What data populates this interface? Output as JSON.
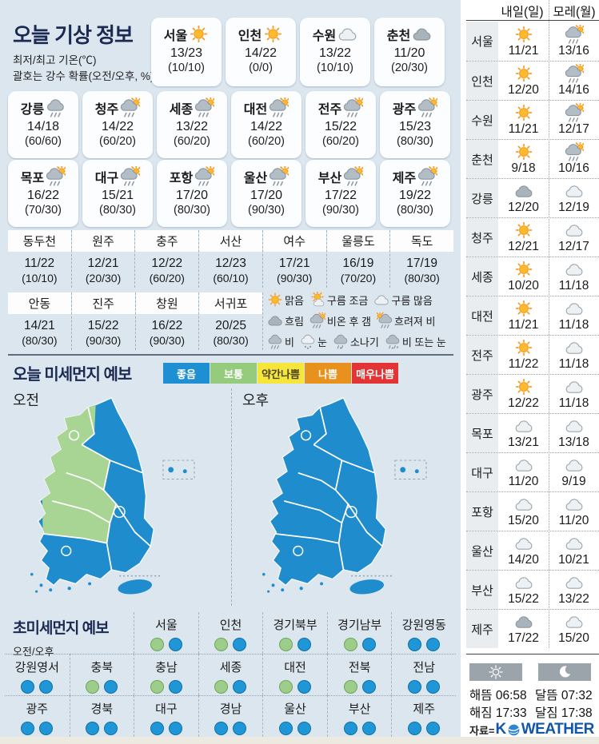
{
  "colors": {
    "bg": "#DCE6EF",
    "navy": "#1A2A52",
    "map_good": "#1F8CCD",
    "map_moderate": "#A9D594",
    "dot_good": "#1F97D6",
    "dot_good_border": "#0F6FA6",
    "dot_moderate": "#9CCD89",
    "dot_moderate_border": "#6FA55E",
    "bar_gray": "#9BA3AB",
    "brand_blue": "#1256A8"
  },
  "left": {
    "title": "오늘 기상 정보",
    "subtitle1": "최저/최고 기온(℃)",
    "subtitle2": "괄호는 강수 확률(오전/오후, %)",
    "card_rows": [
      [
        {
          "name": "서울",
          "icon": "sun",
          "temp": "13/23",
          "prob": "(10/10)"
        },
        {
          "name": "인천",
          "icon": "sun",
          "temp": "14/22",
          "prob": "(0/0)"
        },
        {
          "name": "수원",
          "icon": "cloud-light",
          "temp": "13/22",
          "prob": "(10/10)"
        },
        {
          "name": "춘천",
          "icon": "cloud-dark",
          "temp": "11/20",
          "prob": "(20/30)"
        }
      ],
      [
        {
          "name": "강릉",
          "icon": "rain",
          "temp": "14/18",
          "prob": "(60/60)"
        },
        {
          "name": "청주",
          "icon": "rain-sun",
          "temp": "14/22",
          "prob": "(60/20)"
        },
        {
          "name": "세종",
          "icon": "rain-sun",
          "temp": "13/22",
          "prob": "(60/20)"
        },
        {
          "name": "대전",
          "icon": "rain-sun",
          "temp": "14/22",
          "prob": "(60/20)"
        },
        {
          "name": "전주",
          "icon": "rain-sun",
          "temp": "15/22",
          "prob": "(60/20)"
        },
        {
          "name": "광주",
          "icon": "rain-sun",
          "temp": "15/23",
          "prob": "(80/30)"
        }
      ],
      [
        {
          "name": "목포",
          "icon": "rain-sun",
          "temp": "16/22",
          "prob": "(70/30)"
        },
        {
          "name": "대구",
          "icon": "rain-sun",
          "temp": "15/21",
          "prob": "(80/30)"
        },
        {
          "name": "포항",
          "icon": "rain-sun",
          "temp": "17/20",
          "prob": "(80/30)"
        },
        {
          "name": "울산",
          "icon": "rain-sun",
          "temp": "17/20",
          "prob": "(90/30)"
        },
        {
          "name": "부산",
          "icon": "rain-sun",
          "temp": "17/22",
          "prob": "(90/30)"
        },
        {
          "name": "제주",
          "icon": "rain-sun",
          "temp": "19/22",
          "prob": "(80/30)"
        }
      ]
    ],
    "table_row1": [
      {
        "name": "동두천",
        "temp": "11/22",
        "prob": "(10/10)"
      },
      {
        "name": "원주",
        "temp": "12/21",
        "prob": "(20/30)"
      },
      {
        "name": "충주",
        "temp": "12/22",
        "prob": "(60/20)"
      },
      {
        "name": "서산",
        "temp": "12/23",
        "prob": "(60/10)"
      },
      {
        "name": "여수",
        "temp": "17/21",
        "prob": "(90/30)"
      },
      {
        "name": "울릉도",
        "temp": "16/19",
        "prob": "(70/20)"
      },
      {
        "name": "독도",
        "temp": "17/19",
        "prob": "(80/30)"
      }
    ],
    "table_row2": [
      {
        "name": "안동",
        "temp": "14/21",
        "prob": "(80/30)"
      },
      {
        "name": "진주",
        "temp": "15/22",
        "prob": "(90/30)"
      },
      {
        "name": "창원",
        "temp": "16/22",
        "prob": "(90/30)"
      },
      {
        "name": "서귀포",
        "temp": "20/25",
        "prob": "(80/30)"
      }
    ],
    "weather_legend": [
      [
        {
          "icon": "sun",
          "label": "맑음"
        },
        {
          "icon": "sun-cloud",
          "label": "구름 조금"
        },
        {
          "icon": "cloud-light",
          "label": "구름 많음"
        }
      ],
      [
        {
          "icon": "cloud-dark",
          "label": "흐림"
        },
        {
          "icon": "rain-sun",
          "label": "비온 후 갬"
        },
        {
          "icon": "sun-rain",
          "label": "흐려져 비"
        }
      ],
      [
        {
          "icon": "rain",
          "label": "비"
        },
        {
          "icon": "snow",
          "label": "눈"
        },
        {
          "icon": "shower",
          "label": "소나기"
        },
        {
          "icon": "rain-snow",
          "label": "비 또는 눈"
        }
      ]
    ],
    "dust": {
      "title": "오늘 미세먼지 예보",
      "legend": [
        {
          "label": "좋음",
          "bg": "#1D8FD2",
          "fg": "#FFFFFF"
        },
        {
          "label": "보통",
          "bg": "#95CB7D",
          "fg": "#FFFFFF"
        },
        {
          "label": "약간나쁨",
          "bg": "#F6E63C",
          "fg": "#4A4416"
        },
        {
          "label": "나쁨",
          "bg": "#E8911D",
          "fg": "#FFFFFF"
        },
        {
          "label": "매우나쁨",
          "bg": "#E23434",
          "fg": "#FFFFFF"
        }
      ],
      "am_label": "오전",
      "pm_label": "오후"
    },
    "ultrafine": {
      "title": "초미세먼지 예보",
      "sub": "오전/오후",
      "rows": [
        [
          {
            "name": "서울",
            "am": "moderate",
            "pm": "good"
          },
          {
            "name": "인천",
            "am": "moderate",
            "pm": "good"
          },
          {
            "name": "경기북부",
            "am": "moderate",
            "pm": "good"
          },
          {
            "name": "경기남부",
            "am": "moderate",
            "pm": "good"
          },
          {
            "name": "강원영동",
            "am": "good",
            "pm": "good"
          }
        ],
        [
          {
            "name": "강원영서",
            "am": "good",
            "pm": "good"
          },
          {
            "name": "충북",
            "am": "moderate",
            "pm": "good"
          },
          {
            "name": "충남",
            "am": "moderate",
            "pm": "good"
          },
          {
            "name": "세종",
            "am": "moderate",
            "pm": "good"
          },
          {
            "name": "대전",
            "am": "moderate",
            "pm": "good"
          },
          {
            "name": "전북",
            "am": "moderate",
            "pm": "good"
          },
          {
            "name": "전남",
            "am": "good",
            "pm": "good"
          }
        ],
        [
          {
            "name": "광주",
            "am": "good",
            "pm": "good"
          },
          {
            "name": "경북",
            "am": "good",
            "pm": "good"
          },
          {
            "name": "대구",
            "am": "good",
            "pm": "good"
          },
          {
            "name": "경남",
            "am": "good",
            "pm": "good"
          },
          {
            "name": "울산",
            "am": "good",
            "pm": "good"
          },
          {
            "name": "부산",
            "am": "good",
            "pm": "good"
          },
          {
            "name": "제주",
            "am": "good",
            "pm": "good"
          }
        ]
      ]
    }
  },
  "right": {
    "headers": [
      "내일(일)",
      "모레(월)"
    ],
    "rows": [
      {
        "name": "서울",
        "icon1": "sun",
        "t1": "11/21",
        "icon2": "rain-sun",
        "t2": "13/16"
      },
      {
        "name": "인천",
        "icon1": "sun",
        "t1": "12/20",
        "icon2": "rain-sun",
        "t2": "14/16"
      },
      {
        "name": "수원",
        "icon1": "sun",
        "t1": "11/21",
        "icon2": "rain-sun",
        "t2": "12/17"
      },
      {
        "name": "춘천",
        "icon1": "sun",
        "t1": "9/18",
        "icon2": "rain-sun",
        "t2": "10/16"
      },
      {
        "name": "강릉",
        "icon1": "cloud-dark",
        "t1": "12/20",
        "icon2": "cloud-light",
        "t2": "12/19"
      },
      {
        "name": "청주",
        "icon1": "sun",
        "t1": "12/21",
        "icon2": "cloud-light",
        "t2": "12/17"
      },
      {
        "name": "세종",
        "icon1": "sun",
        "t1": "10/20",
        "icon2": "cloud-light",
        "t2": "11/18"
      },
      {
        "name": "대전",
        "icon1": "sun",
        "t1": "11/21",
        "icon2": "cloud-light",
        "t2": "11/18"
      },
      {
        "name": "전주",
        "icon1": "sun",
        "t1": "11/22",
        "icon2": "cloud-light",
        "t2": "11/18"
      },
      {
        "name": "광주",
        "icon1": "sun",
        "t1": "12/22",
        "icon2": "cloud-light",
        "t2": "11/18"
      },
      {
        "name": "목포",
        "icon1": "cloud-light",
        "t1": "13/21",
        "icon2": "cloud-light",
        "t2": "13/18"
      },
      {
        "name": "대구",
        "icon1": "cloud-light",
        "t1": "11/20",
        "icon2": "cloud-light",
        "t2": "9/19"
      },
      {
        "name": "포항",
        "icon1": "cloud-light",
        "t1": "15/20",
        "icon2": "cloud-light",
        "t2": "11/20"
      },
      {
        "name": "울산",
        "icon1": "cloud-light",
        "t1": "14/20",
        "icon2": "cloud-light",
        "t2": "10/21"
      },
      {
        "name": "부산",
        "icon1": "cloud-light",
        "t1": "15/22",
        "icon2": "cloud-light",
        "t2": "13/22"
      },
      {
        "name": "제주",
        "icon1": "cloud-dark",
        "t1": "17/22",
        "icon2": "cloud-light",
        "t2": "15/20"
      }
    ],
    "suntimes": {
      "rise_label": "해뜸",
      "rise": "06:58",
      "set_label": "해짐",
      "set": "17:33",
      "moonrise_label": "달뜸",
      "moonrise": "07:32",
      "moonset_label": "달짐",
      "moonset": "17:38"
    },
    "source_label": "자료=",
    "brand_k": "K",
    "brand_rest": "WEATHER"
  }
}
